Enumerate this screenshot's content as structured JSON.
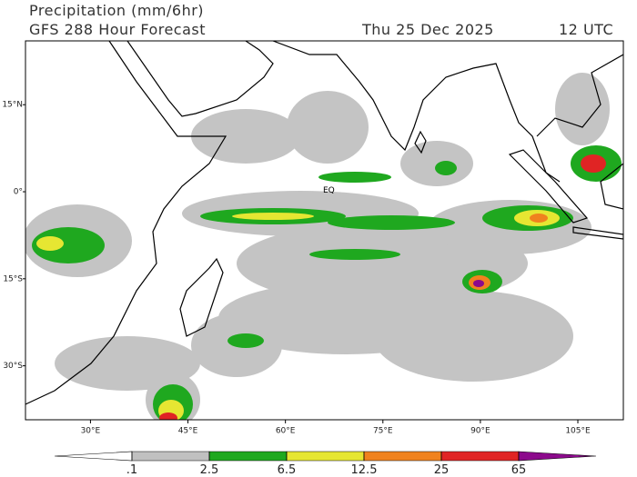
{
  "header": {
    "title": "Precipitation (mm/6hr)",
    "subtitle": "GFS 288 Hour Forecast",
    "date": "Thu 25 Dec 2025",
    "time": "12 UTC"
  },
  "map": {
    "lonlim": [
      20,
      112
    ],
    "latlim": [
      -39.3,
      26
    ],
    "lonticks": [
      {
        "value": 30,
        "label": "30°E"
      },
      {
        "value": 45,
        "label": "45°E"
      },
      {
        "value": 60,
        "label": "60°E"
      },
      {
        "value": 75,
        "label": "75°E"
      },
      {
        "value": 90,
        "label": "90°E"
      },
      {
        "value": 105,
        "label": "105°E"
      }
    ],
    "latticks": [
      {
        "value": 15,
        "label": "15°N"
      },
      {
        "value": 0,
        "label": "0°"
      },
      {
        "value": -15,
        "label": "15°S"
      },
      {
        "value": -30,
        "label": "30°S"
      }
    ],
    "annotation": "EQ"
  },
  "colorbar": {
    "levels": [
      {
        "value": 0.1,
        "label": ".1"
      },
      2.5,
      6.5,
      12.5,
      25,
      65
    ],
    "colors": [
      "#ffffff",
      "#c0c0c0",
      "#1fa81f",
      "#e6e632",
      "#f0821e",
      "#e02424",
      "#8c0a8c"
    ]
  }
}
